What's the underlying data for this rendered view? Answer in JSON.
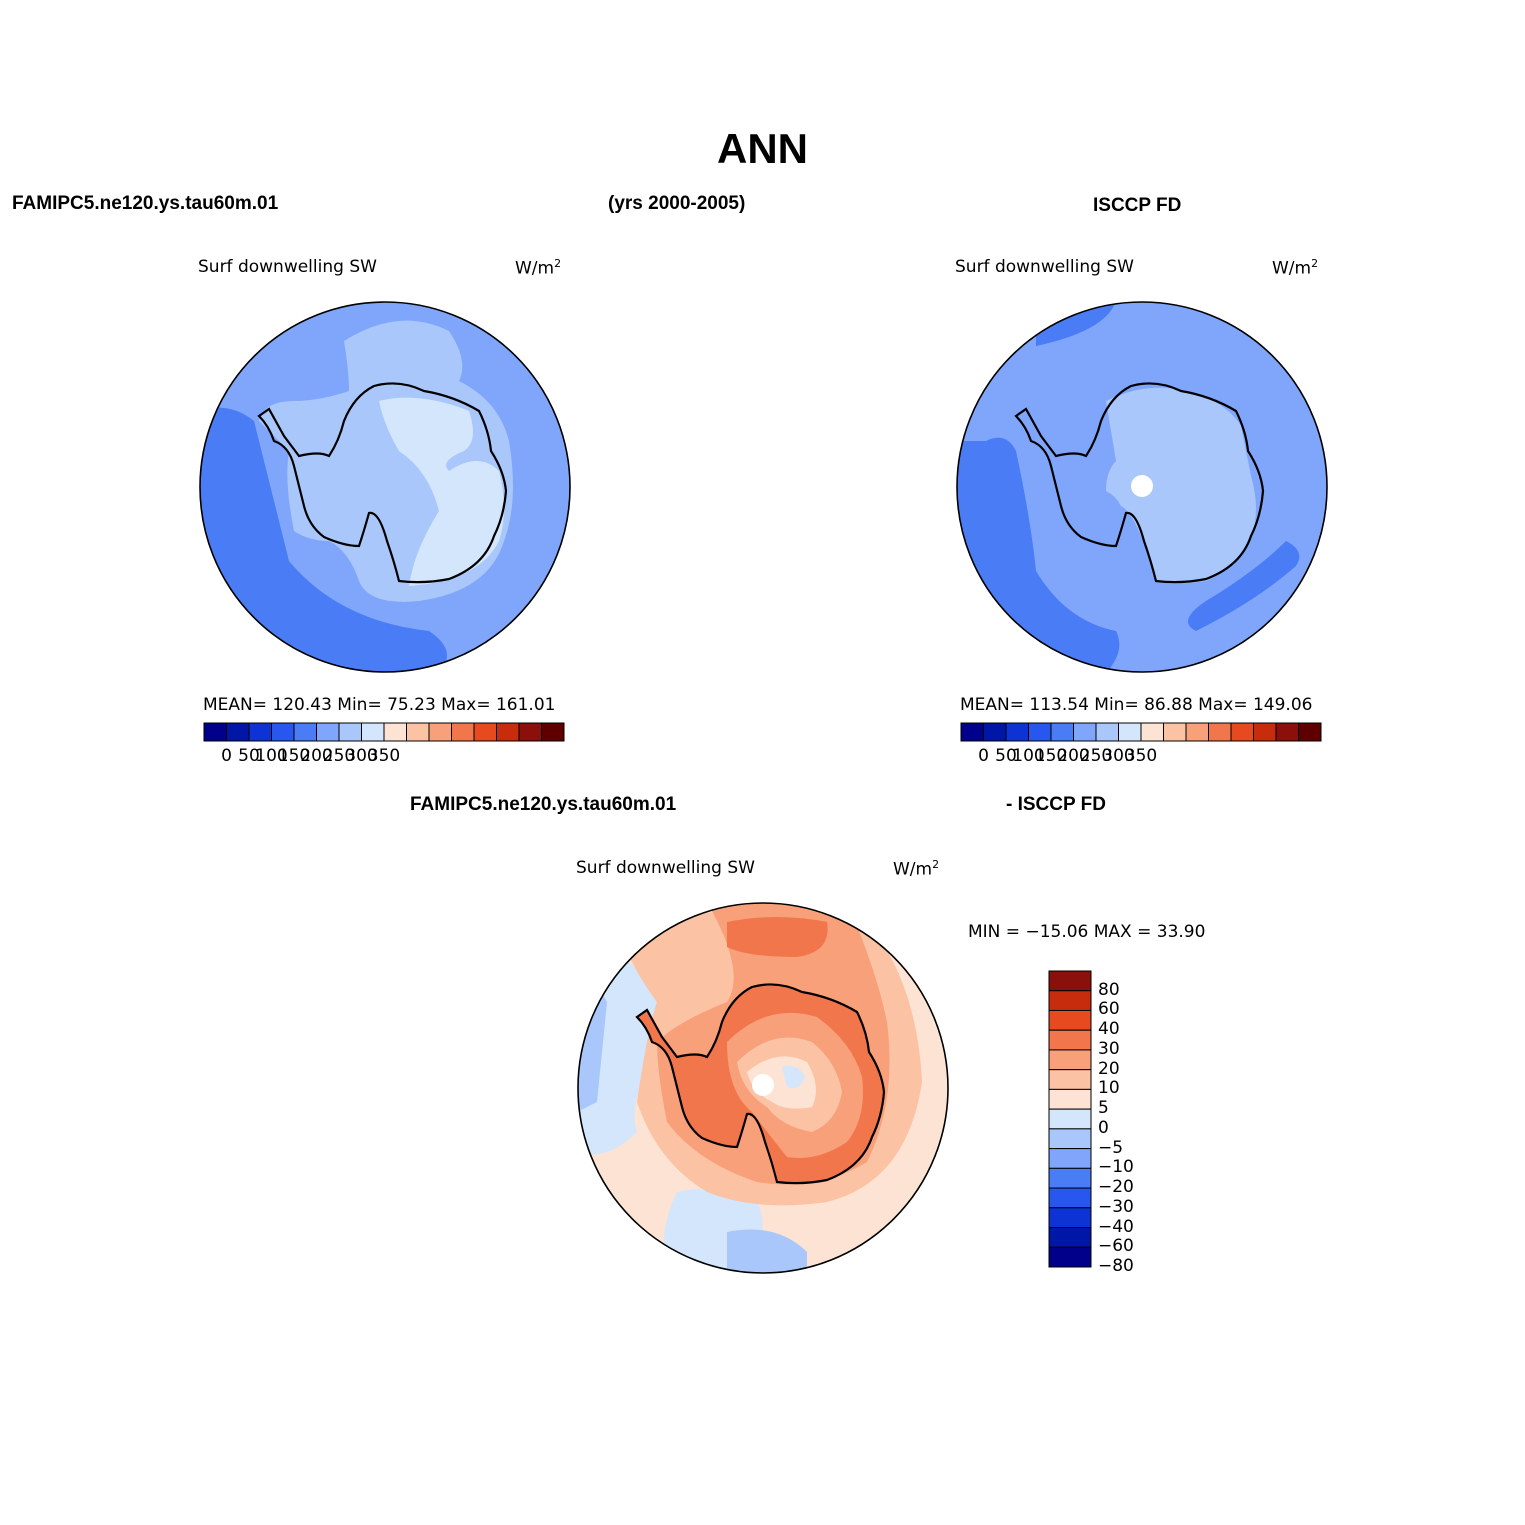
{
  "title": "ANN",
  "top_left_case": "FAMIPC5.ne120.ys.tau60m.01",
  "years": "(yrs 2000-2005)",
  "top_right_case": "ISCCP FD",
  "bottom_case_left": "FAMIPC5.ne120.ys.tau60m.01",
  "bottom_case_right": "- ISCCP FD",
  "colors": {
    "abs_scale": [
      "#00008a",
      "#0016a6",
      "#0d33d4",
      "#2857f0",
      "#4a7df5",
      "#7fa6fa",
      "#a9c7fb",
      "#d3e6fc",
      "#fde3d3",
      "#fbc2a3",
      "#f7a07a",
      "#f2764c",
      "#e84a1f",
      "#c72d0d",
      "#8b0f0a",
      "#5e0000"
    ],
    "diff_scale": [
      "#00008a",
      "#0016a6",
      "#0d33d4",
      "#2857f0",
      "#4a7df5",
      "#7fa6fa",
      "#a9c7fb",
      "#d3e6fc",
      "#fde3d3",
      "#fbc2a3",
      "#f7a07a",
      "#f2764c",
      "#e84a1f",
      "#c72d0d",
      "#8b0f0a"
    ]
  },
  "panels": [
    {
      "id": "model",
      "variable": "Surf downwelling SW",
      "units": "W/m",
      "units_sup": "2",
      "stats": "MEAN= 120.43   Min=   75.23   Max=  161.01",
      "colorbar_labels": [
        "0",
        "50",
        "100",
        "150",
        "200",
        "250",
        "300",
        "350"
      ]
    },
    {
      "id": "obs",
      "variable": "Surf downwelling SW",
      "units": "W/m",
      "units_sup": "2",
      "stats": "MEAN= 113.54   Min=   86.88   Max=  149.06",
      "colorbar_labels": [
        "0",
        "50",
        "100",
        "150",
        "200",
        "250",
        "300",
        "350"
      ]
    },
    {
      "id": "diff",
      "variable": "Surf downwelling SW",
      "units": "W/m",
      "units_sup": "2",
      "stats": "MIN = −15.06 MAX =   33.90",
      "colorbar_labels": [
        "80",
        "60",
        "40",
        "30",
        "20",
        "10",
        "5",
        "0",
        "−5",
        "−10",
        "−20",
        "−30",
        "−40",
        "−60",
        "−80"
      ]
    }
  ]
}
